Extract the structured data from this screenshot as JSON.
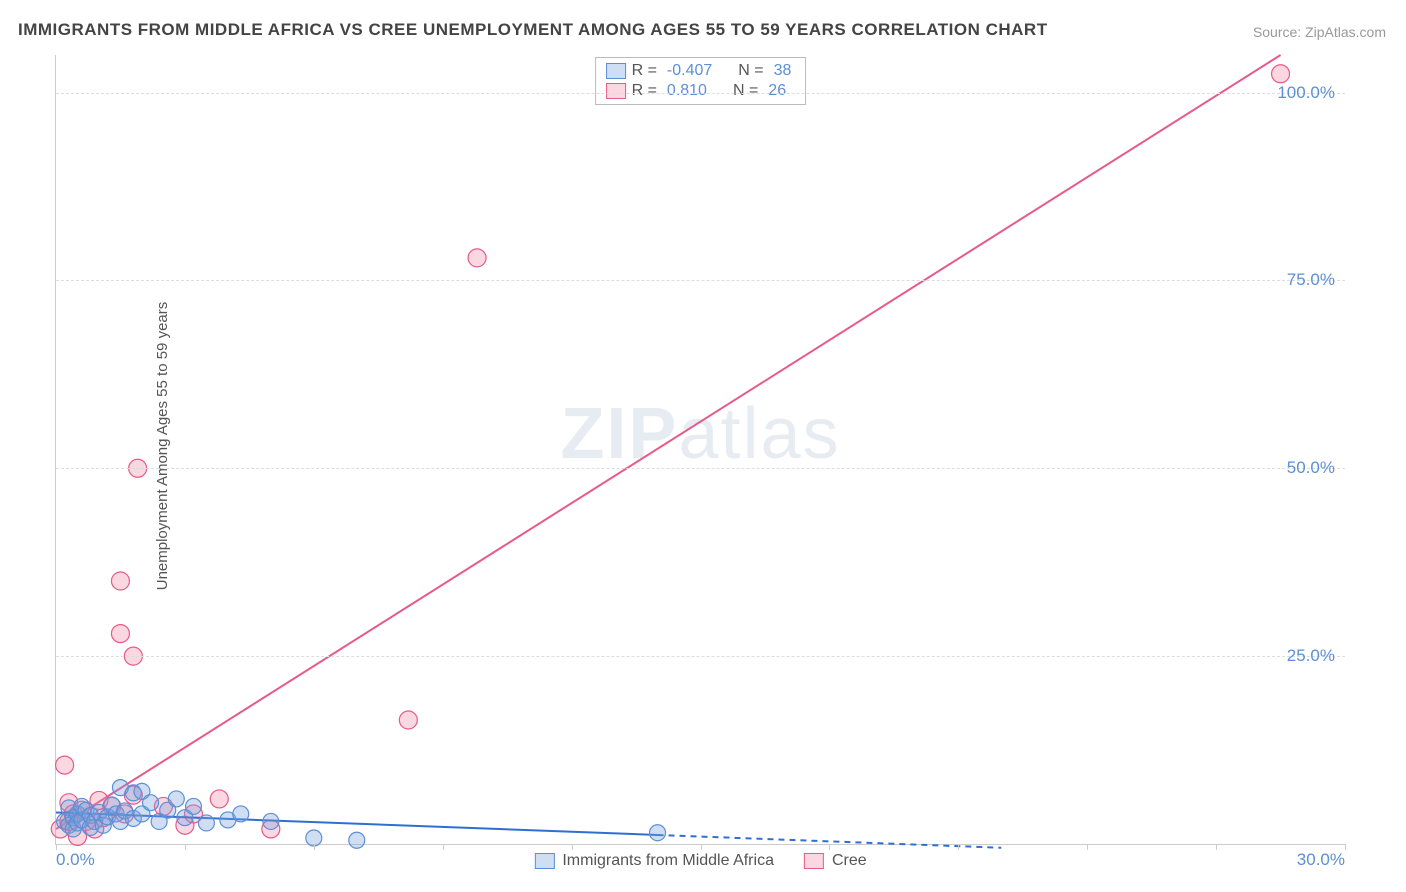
{
  "title": "IMMIGRANTS FROM MIDDLE AFRICA VS CREE UNEMPLOYMENT AMONG AGES 55 TO 59 YEARS CORRELATION CHART",
  "source_label": "Source: ",
  "source_name": "ZipAtlas.com",
  "ylabel": "Unemployment Among Ages 55 to 59 years",
  "watermark_prefix": "ZIP",
  "watermark_suffix": "atlas",
  "chart": {
    "type": "scatter",
    "xlim": [
      0,
      30
    ],
    "ylim": [
      0,
      105
    ],
    "y_ticks": [
      25.0,
      50.0,
      75.0,
      100.0
    ],
    "y_tick_labels": [
      "25.0%",
      "50.0%",
      "75.0%",
      "100.0%"
    ],
    "x_tick_positions": [
      0,
      3,
      6,
      9,
      12,
      15,
      18,
      21,
      24,
      27,
      30
    ],
    "x_tick_labels": {
      "0": "0.0%",
      "30": "30.0%"
    },
    "grid_color": "#dddddd",
    "axis_color": "#cccccc",
    "tick_label_color": "#5b8fd6",
    "background_color": "#ffffff",
    "series": [
      {
        "id": "middle_africa",
        "label": "Immigrants from Middle Africa",
        "R_label": "R =",
        "R": "-0.407",
        "N_label": "N =",
        "N": "38",
        "fill": "rgba(120,160,220,0.35)",
        "stroke": "#5b8fd6",
        "line_color": "#2e6fd1",
        "line_width": 2,
        "marker_radius": 8,
        "trend": {
          "x1": 0,
          "y1": 4.2,
          "x2": 14,
          "y2": 1.2,
          "dash_after_x": 14,
          "dash_to_x": 22,
          "dash_to_y": -0.5
        },
        "points": [
          [
            0.2,
            3.0
          ],
          [
            0.3,
            2.5
          ],
          [
            0.3,
            4.8
          ],
          [
            0.4,
            3.5
          ],
          [
            0.4,
            2.0
          ],
          [
            0.5,
            4.0
          ],
          [
            0.5,
            2.8
          ],
          [
            0.6,
            3.2
          ],
          [
            0.6,
            5.0
          ],
          [
            0.7,
            4.5
          ],
          [
            0.8,
            3.8
          ],
          [
            0.8,
            2.2
          ],
          [
            0.9,
            3.0
          ],
          [
            1.0,
            4.2
          ],
          [
            1.1,
            2.5
          ],
          [
            1.2,
            3.6
          ],
          [
            1.3,
            5.2
          ],
          [
            1.4,
            4.0
          ],
          [
            1.5,
            3.0
          ],
          [
            1.5,
            7.5
          ],
          [
            1.6,
            4.4
          ],
          [
            1.8,
            6.8
          ],
          [
            1.8,
            3.4
          ],
          [
            2.0,
            7.0
          ],
          [
            2.0,
            4.0
          ],
          [
            2.2,
            5.5
          ],
          [
            2.4,
            3.0
          ],
          [
            2.6,
            4.5
          ],
          [
            2.8,
            6.0
          ],
          [
            3.0,
            3.5
          ],
          [
            3.2,
            5.0
          ],
          [
            3.5,
            2.8
          ],
          [
            4.0,
            3.2
          ],
          [
            4.3,
            4.0
          ],
          [
            5.0,
            3.0
          ],
          [
            6.0,
            0.8
          ],
          [
            7.0,
            0.5
          ],
          [
            14.0,
            1.5
          ]
        ]
      },
      {
        "id": "cree",
        "label": "Cree",
        "R_label": "R =",
        "R": "0.810",
        "N_label": "N =",
        "N": "26",
        "fill": "rgba(240,140,170,0.35)",
        "stroke": "#e75a8a",
        "line_color": "#e75a8a",
        "line_width": 2,
        "marker_radius": 9,
        "trend": {
          "x1": 0,
          "y1": 2.0,
          "x2": 28.5,
          "y2": 105,
          "dash_after_x": 30,
          "dash_to_x": 30,
          "dash_to_y": 110
        },
        "points": [
          [
            0.1,
            2.0
          ],
          [
            0.2,
            10.5
          ],
          [
            0.3,
            3.0
          ],
          [
            0.3,
            5.5
          ],
          [
            0.4,
            4.0
          ],
          [
            0.5,
            1.0
          ],
          [
            0.6,
            4.5
          ],
          [
            0.7,
            3.0
          ],
          [
            0.9,
            2.0
          ],
          [
            1.0,
            5.8
          ],
          [
            1.1,
            3.5
          ],
          [
            1.3,
            5.0
          ],
          [
            1.5,
            35.0
          ],
          [
            1.5,
            28.0
          ],
          [
            1.6,
            4.0
          ],
          [
            1.8,
            6.5
          ],
          [
            1.8,
            25.0
          ],
          [
            1.9,
            50.0
          ],
          [
            2.5,
            5.0
          ],
          [
            3.0,
            2.5
          ],
          [
            3.2,
            4.0
          ],
          [
            3.8,
            6.0
          ],
          [
            5.0,
            2.0
          ],
          [
            8.2,
            16.5
          ],
          [
            9.8,
            78.0
          ],
          [
            28.5,
            102.5
          ]
        ]
      }
    ]
  }
}
